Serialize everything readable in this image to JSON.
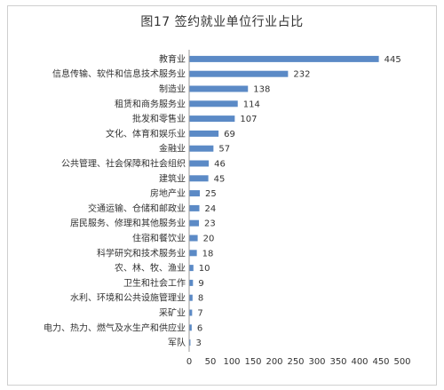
{
  "chart_data": {
    "type": "bar",
    "orientation": "horizontal",
    "title": "图17 签约就业单位行业占比",
    "xlabel": "",
    "ylabel": "",
    "categories": [
      "教育业",
      "信息传输、软件和信息技术服务业",
      "制造业",
      "租赁和商务服务业",
      "批发和零售业",
      "文化、体育和娱乐业",
      "金融业",
      "公共管理、社会保障和社会组织",
      "建筑业",
      "房地产业",
      "交通运输、仓储和邮政业",
      "居民服务、修理和其他服务业",
      "住宿和餐饮业",
      "科学研究和技术服务业",
      "农、林、牧、渔业",
      "卫生和社会工作",
      "水利、环境和公共设施管理业",
      "采矿业",
      "电力、热力、燃气及水生产和供应业",
      "军队"
    ],
    "values": [
      445,
      232,
      138,
      114,
      107,
      69,
      57,
      46,
      45,
      25,
      24,
      23,
      20,
      18,
      10,
      9,
      8,
      7,
      6,
      3
    ],
    "xlim": [
      0,
      500
    ],
    "xticks": [
      0,
      50,
      100,
      150,
      200,
      250,
      300,
      350,
      400,
      450,
      500
    ],
    "grid": false,
    "legend": "none",
    "bar_color": "#5b8ac6"
  }
}
